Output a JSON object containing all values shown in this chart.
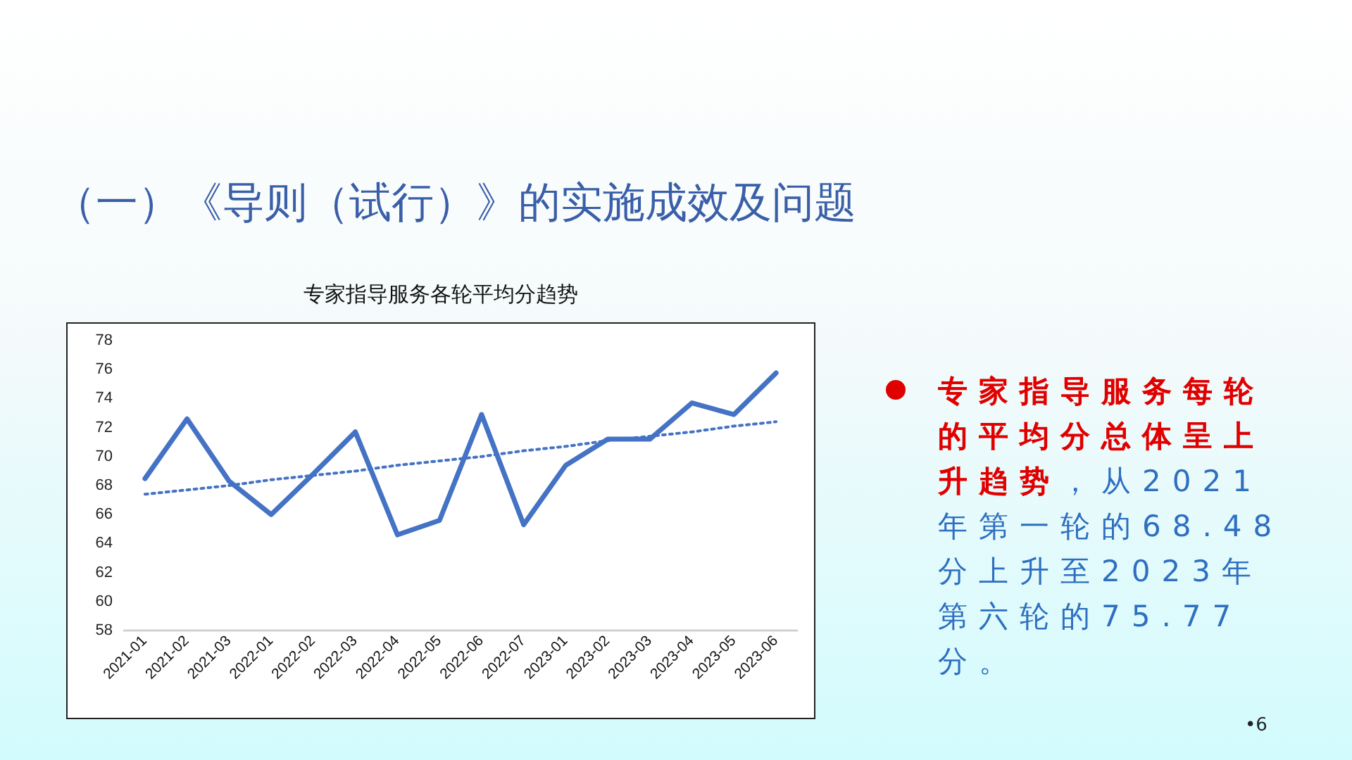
{
  "chart_data": {
    "type": "line",
    "title": "（一）《导则（试行）》的实施成效及问题",
    "subtitle": "专家指导服务各轮平均分趋势",
    "categories": [
      "2021-01",
      "2021-02",
      "2021-03",
      "2022-01",
      "2022-02",
      "2022-03",
      "2022-04",
      "2022-05",
      "2022-06",
      "2022-07",
      "2023-01",
      "2023-02",
      "2023-03",
      "2023-04",
      "2023-05",
      "2023-06"
    ],
    "series": [
      {
        "color": "#4472c4",
        "line_style": "solid",
        "values": [
          68.48,
          72.6,
          68.3,
          66.0,
          68.8,
          71.7,
          64.6,
          65.6,
          72.9,
          65.3,
          69.4,
          71.2,
          71.2,
          73.7,
          72.9,
          75.77
        ]
      },
      {
        "type": "line",
        "color": "#4472c4",
        "line_style": "dotted",
        "values": [
          67.4,
          67.7,
          68.0,
          68.4,
          68.7,
          69.0,
          69.4,
          69.7,
          70.0,
          70.4,
          70.7,
          71.1,
          71.4,
          71.7,
          72.1,
          72.4
        ]
      }
    ],
    "ylim": [
      58,
      78
    ],
    "yticks": [
      58,
      60,
      62,
      64,
      66,
      68,
      70,
      72,
      74,
      76,
      78
    ],
    "grid": false,
    "marker": "none",
    "annotations": [
      "专家指导服务每轮的平均分总体呈上升趋势",
      "，从2021年第一轮的68.48分上升至2023年第六轮的75.77分。",
      "•6"
    ]
  }
}
